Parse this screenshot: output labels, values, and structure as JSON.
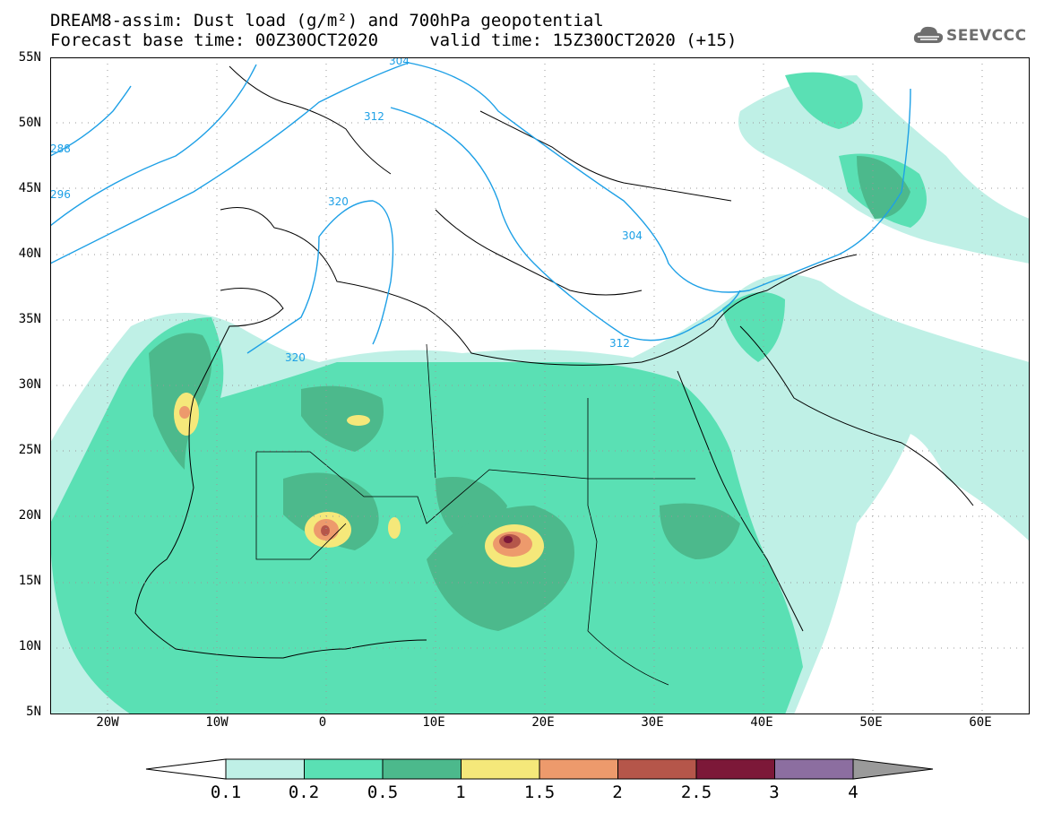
{
  "title": {
    "line1": "DREAM8-assim: Dust load (g/m²) and 700hPa geopotential",
    "line2": "Forecast base time: 00Z30OCT2020     valid time: 15Z30OCT2020 (+15)"
  },
  "logo": {
    "text": "SEEVCCC",
    "icon": "cloud-icon"
  },
  "map": {
    "lat_labels": [
      "55N",
      "50N",
      "45N",
      "40N",
      "35N",
      "30N",
      "25N",
      "20N",
      "15N",
      "10N",
      "5N"
    ],
    "lon_labels": [
      "20W",
      "10W",
      "0",
      "10E",
      "20E",
      "30E",
      "40E",
      "50E",
      "60E"
    ],
    "contour_labels": [
      "288",
      "296",
      "304",
      "312",
      "320",
      "304",
      "312",
      "320"
    ]
  },
  "colorbar": {
    "labels": [
      "0.1",
      "0.2",
      "0.5",
      "1",
      "1.5",
      "2",
      "2.5",
      "3",
      "4"
    ],
    "colors": [
      "#bff0e6",
      "#5ae0b4",
      "#4cb98c",
      "#f5e87a",
      "#ed9a6c",
      "#b5564a",
      "#7c1838",
      "#8c6ea0"
    ],
    "under_color": "#ffffff",
    "over_color": "#9a9a9a"
  },
  "colors": {
    "contour": "#1ea0e6",
    "border": "#000000"
  }
}
